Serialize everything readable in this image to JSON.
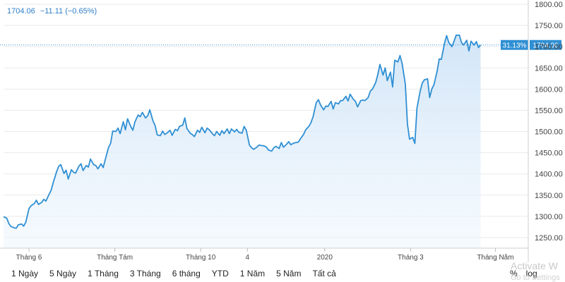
{
  "header": {
    "last_value": "1704.06",
    "change": "−11.11 (−0.65%)"
  },
  "price_label": {
    "percent": "31.13%",
    "value": "1704.06"
  },
  "range_buttons": [
    "1 Ngày",
    "5 Ngày",
    "1 Tháng",
    "3 Tháng",
    "6 tháng",
    "YTD",
    "1 Năm",
    "5 Năm",
    "Tất cả"
  ],
  "toggles": [
    "%",
    "log"
  ],
  "watermark": {
    "line1": "Activate W",
    "line2": "Go to Settings"
  },
  "colors": {
    "line": "#2f8fd3",
    "area_top": "#cfe4f7",
    "badge": "#2f8fd3",
    "dotted": "#2f8fd3"
  },
  "chart_data": {
    "type": "area",
    "title": "",
    "xlabel": "",
    "ylabel": "",
    "ylim": [
      1225,
      1800
    ],
    "y_ticks": [
      1250,
      1300,
      1350,
      1400,
      1450,
      1500,
      1550,
      1600,
      1650,
      1700,
      1750,
      1800
    ],
    "x_ticks": [
      {
        "label": "Tháng 6",
        "t": 24
      },
      {
        "label": "Tháng Tám",
        "t": 105
      },
      {
        "label": "Tháng 10",
        "t": 186
      },
      {
        "label": "4",
        "t": 230
      },
      {
        "label": "2020",
        "t": 303
      },
      {
        "label": "Tháng 3",
        "t": 384
      },
      {
        "label": "Tháng Năm",
        "t": 464
      }
    ],
    "last_value": 1704.06,
    "series": [
      {
        "values": [
          [
            0,
            1299
          ],
          [
            3,
            1296
          ],
          [
            5,
            1283
          ],
          [
            7,
            1276
          ],
          [
            10,
            1273
          ],
          [
            12,
            1272
          ],
          [
            14,
            1280
          ],
          [
            17,
            1282
          ],
          [
            19,
            1277
          ],
          [
            21,
            1286
          ],
          [
            24,
            1318
          ],
          [
            26,
            1325
          ],
          [
            29,
            1330
          ],
          [
            31,
            1338
          ],
          [
            33,
            1328
          ],
          [
            36,
            1333
          ],
          [
            38,
            1340
          ],
          [
            40,
            1336
          ],
          [
            43,
            1352
          ],
          [
            45,
            1362
          ],
          [
            47,
            1380
          ],
          [
            50,
            1405
          ],
          [
            52,
            1418
          ],
          [
            54,
            1422
          ],
          [
            57,
            1401
          ],
          [
            59,
            1409
          ],
          [
            61,
            1388
          ],
          [
            64,
            1410
          ],
          [
            66,
            1404
          ],
          [
            68,
            1402
          ],
          [
            71,
            1418
          ],
          [
            73,
            1424
          ],
          [
            75,
            1408
          ],
          [
            78,
            1420
          ],
          [
            80,
            1416
          ],
          [
            82,
            1435
          ],
          [
            85,
            1422
          ],
          [
            87,
            1420
          ],
          [
            89,
            1412
          ],
          [
            92,
            1424
          ],
          [
            94,
            1415
          ],
          [
            96,
            1434
          ],
          [
            99,
            1462
          ],
          [
            101,
            1472
          ],
          [
            103,
            1501
          ],
          [
            106,
            1500
          ],
          [
            108,
            1508
          ],
          [
            110,
            1495
          ],
          [
            113,
            1523
          ],
          [
            115,
            1504
          ],
          [
            117,
            1530
          ],
          [
            120,
            1512
          ],
          [
            122,
            1503
          ],
          [
            124,
            1523
          ],
          [
            127,
            1539
          ],
          [
            129,
            1535
          ],
          [
            131,
            1545
          ],
          [
            134,
            1532
          ],
          [
            136,
            1537
          ],
          [
            138,
            1551
          ],
          [
            141,
            1525
          ],
          [
            143,
            1514
          ],
          [
            145,
            1492
          ],
          [
            148,
            1490
          ],
          [
            150,
            1501
          ],
          [
            152,
            1493
          ],
          [
            155,
            1498
          ],
          [
            157,
            1503
          ],
          [
            159,
            1491
          ],
          [
            162,
            1505
          ],
          [
            164,
            1502
          ],
          [
            166,
            1512
          ],
          [
            169,
            1515
          ],
          [
            171,
            1532
          ],
          [
            173,
            1507
          ],
          [
            176,
            1496
          ],
          [
            178,
            1493
          ],
          [
            180,
            1488
          ],
          [
            183,
            1503
          ],
          [
            185,
            1498
          ],
          [
            187,
            1510
          ],
          [
            190,
            1497
          ],
          [
            192,
            1508
          ],
          [
            194,
            1504
          ],
          [
            197,
            1495
          ],
          [
            199,
            1490
          ],
          [
            201,
            1500
          ],
          [
            204,
            1491
          ],
          [
            206,
            1502
          ],
          [
            208,
            1495
          ],
          [
            211,
            1506
          ],
          [
            213,
            1495
          ],
          [
            215,
            1506
          ],
          [
            218,
            1499
          ],
          [
            220,
            1505
          ],
          [
            222,
            1498
          ],
          [
            225,
            1496
          ],
          [
            227,
            1512
          ],
          [
            229,
            1503
          ],
          [
            232,
            1468
          ],
          [
            234,
            1462
          ],
          [
            236,
            1458
          ],
          [
            239,
            1463
          ],
          [
            241,
            1468
          ],
          [
            243,
            1467
          ],
          [
            246,
            1466
          ],
          [
            248,
            1463
          ],
          [
            250,
            1456
          ],
          [
            253,
            1454
          ],
          [
            255,
            1462
          ],
          [
            257,
            1465
          ],
          [
            260,
            1460
          ],
          [
            262,
            1474
          ],
          [
            264,
            1463
          ],
          [
            267,
            1470
          ],
          [
            269,
            1476
          ],
          [
            271,
            1469
          ],
          [
            274,
            1473
          ],
          [
            276,
            1474
          ],
          [
            278,
            1475
          ],
          [
            281,
            1486
          ],
          [
            283,
            1493
          ],
          [
            285,
            1504
          ],
          [
            288,
            1512
          ],
          [
            290,
            1521
          ],
          [
            292,
            1535
          ],
          [
            295,
            1568
          ],
          [
            297,
            1575
          ],
          [
            299,
            1563
          ],
          [
            302,
            1551
          ],
          [
            304,
            1560
          ],
          [
            306,
            1559
          ],
          [
            309,
            1571
          ],
          [
            311,
            1553
          ],
          [
            313,
            1568
          ],
          [
            316,
            1565
          ],
          [
            318,
            1573
          ],
          [
            320,
            1573
          ],
          [
            323,
            1583
          ],
          [
            325,
            1572
          ],
          [
            327,
            1588
          ],
          [
            330,
            1576
          ],
          [
            332,
            1571
          ],
          [
            334,
            1558
          ],
          [
            337,
            1573
          ],
          [
            339,
            1574
          ],
          [
            341,
            1573
          ],
          [
            344,
            1580
          ],
          [
            346,
            1595
          ],
          [
            348,
            1600
          ],
          [
            351,
            1615
          ],
          [
            353,
            1634
          ],
          [
            355,
            1658
          ],
          [
            358,
            1633
          ],
          [
            360,
            1650
          ],
          [
            362,
            1620
          ],
          [
            365,
            1640
          ],
          [
            367,
            1605
          ],
          [
            369,
            1668
          ],
          [
            372,
            1664
          ],
          [
            374,
            1679
          ],
          [
            376,
            1660
          ],
          [
            379,
            1612
          ],
          [
            381,
            1518
          ],
          [
            383,
            1482
          ],
          [
            386,
            1486
          ],
          [
            388,
            1472
          ],
          [
            390,
            1555
          ],
          [
            393,
            1595
          ],
          [
            395,
            1614
          ],
          [
            397,
            1622
          ],
          [
            400,
            1624
          ],
          [
            402,
            1580
          ],
          [
            404,
            1600
          ],
          [
            406,
            1610
          ],
          [
            409,
            1642
          ],
          [
            411,
            1671
          ],
          [
            413,
            1670
          ],
          [
            416,
            1708
          ],
          [
            418,
            1726
          ],
          [
            420,
            1710
          ],
          [
            423,
            1700
          ],
          [
            425,
            1713
          ],
          [
            427,
            1727
          ],
          [
            430,
            1727
          ],
          [
            432,
            1710
          ],
          [
            434,
            1704
          ],
          [
            437,
            1715
          ],
          [
            439,
            1690
          ],
          [
            441,
            1713
          ],
          [
            444,
            1704
          ],
          [
            446,
            1712
          ],
          [
            448,
            1698
          ],
          [
            450,
            1704
          ]
        ]
      }
    ]
  }
}
